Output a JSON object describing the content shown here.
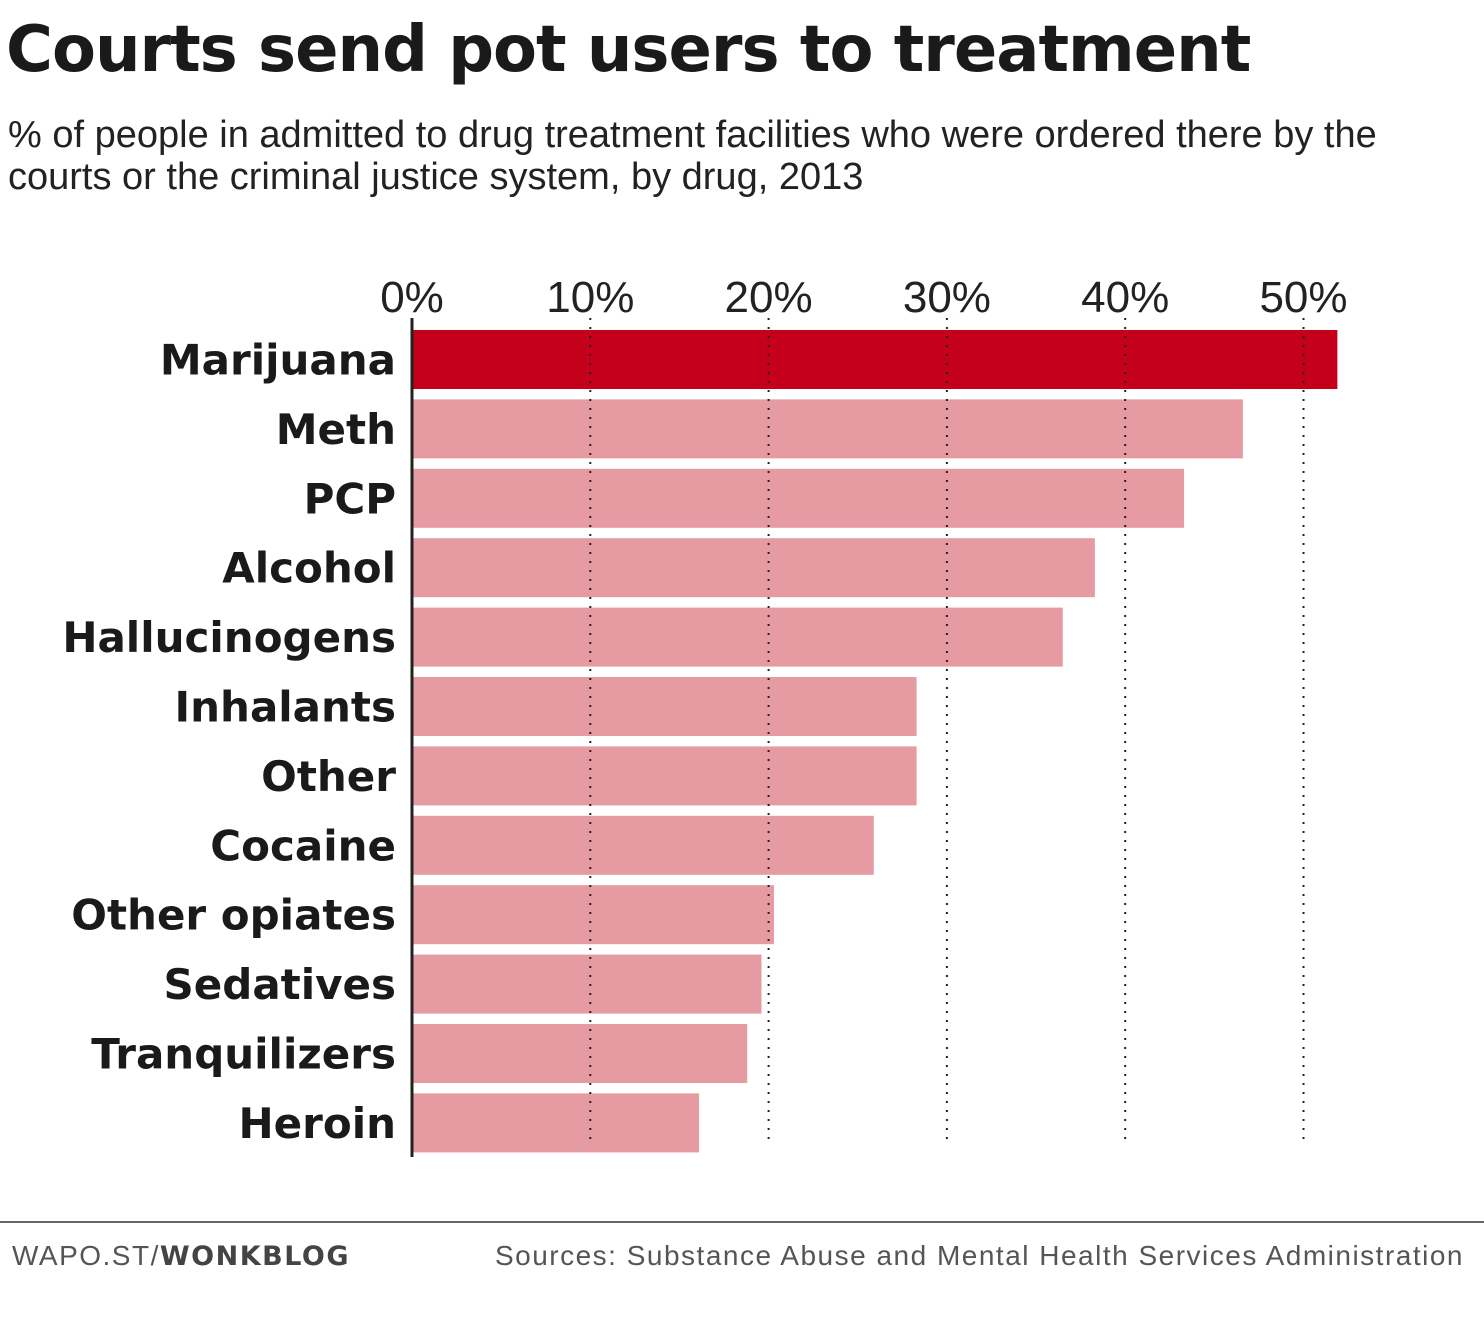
{
  "header": {
    "title": "Courts send pot users to treatment",
    "subtitle": "% of people in admitted to drug treatment facilities who were ordered there by the courts or the criminal justice system, by drug, 2013"
  },
  "chart_data": {
    "type": "bar",
    "orientation": "horizontal",
    "categories": [
      "Marijuana",
      "Meth",
      "PCP",
      "Alcohol",
      "Hallucinogens",
      "Inhalants",
      "Other",
      "Cocaine",
      "Other opiates",
      "Sedatives",
      "Tranquilizers",
      "Heroin"
    ],
    "values": [
      51.9,
      46.6,
      43.3,
      38.3,
      36.5,
      28.3,
      28.3,
      25.9,
      20.3,
      19.6,
      18.8,
      16.1
    ],
    "highlight_index": 0,
    "xlim": [
      0,
      50
    ],
    "xticks": [
      0,
      10,
      20,
      30,
      40,
      50
    ],
    "xtick_labels": [
      "0%",
      "10%",
      "20%",
      "30%",
      "40%",
      "50%"
    ],
    "grid": "vertical dotted",
    "colors": {
      "highlight": "#c4001a",
      "bar": "#e69aa1",
      "grid": "#222222",
      "axis": "#222222"
    }
  },
  "footer": {
    "source_prefix": "WAPO.ST/",
    "source_bold": "WONKBLOG",
    "sources": "Sources: Substance Abuse and Mental Health Services Administration"
  }
}
